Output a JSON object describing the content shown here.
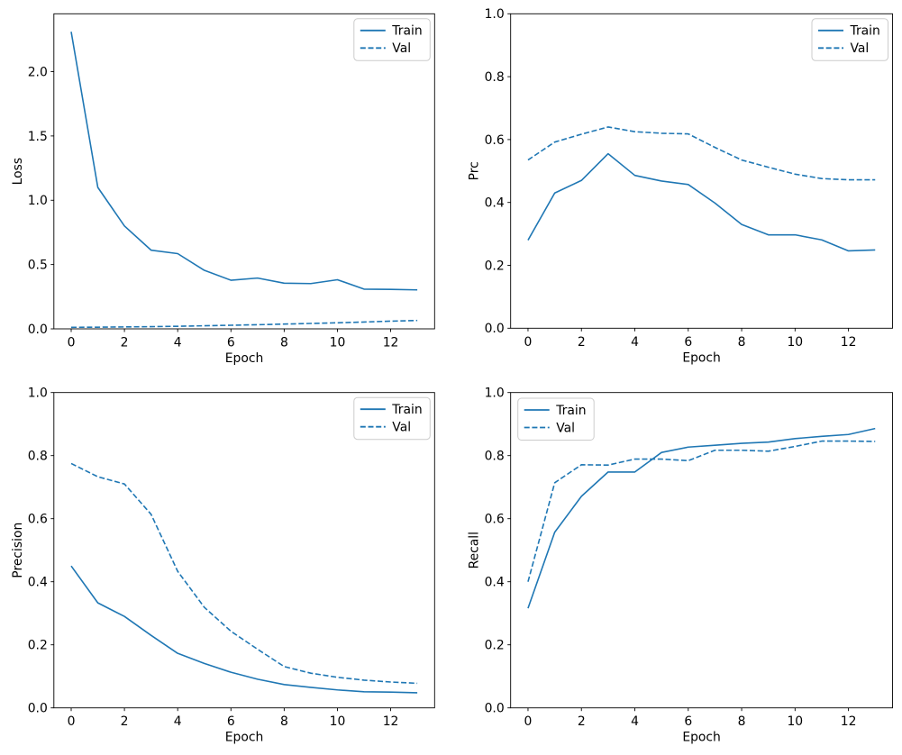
{
  "figure": {
    "background": "#ffffff",
    "accent_color": "#1f77b4",
    "spine_color": "#000000",
    "legend_border_color": "#cccccc"
  },
  "chart_data": [
    {
      "type": "line",
      "title": "",
      "xlabel": "Epoch",
      "ylabel": "Loss",
      "x": [
        0,
        1,
        2,
        3,
        4,
        5,
        6,
        7,
        8,
        9,
        10,
        11,
        12,
        13
      ],
      "series": [
        {
          "name": "Train",
          "line_style": "solid",
          "values": [
            2.31,
            1.1,
            0.8,
            0.612,
            0.585,
            0.455,
            0.378,
            0.395,
            0.355,
            0.352,
            0.382,
            0.309,
            0.307,
            0.303
          ]
        },
        {
          "name": "Val",
          "line_style": "dashed",
          "values": [
            0.012,
            0.013,
            0.015,
            0.017,
            0.02,
            0.024,
            0.028,
            0.032,
            0.037,
            0.042,
            0.047,
            0.053,
            0.06,
            0.065
          ]
        }
      ],
      "xlim": [
        -0.65,
        13.65
      ],
      "ylim": [
        0,
        2.45
      ],
      "xticks": [
        0,
        2,
        4,
        6,
        8,
        10,
        12
      ],
      "yticks": [
        0.0,
        0.5,
        1.0,
        1.5,
        2.0
      ],
      "grid": false,
      "legend": {
        "position": "upper-right",
        "entries": [
          "Train",
          "Val"
        ]
      }
    },
    {
      "type": "line",
      "title": "",
      "xlabel": "Epoch",
      "ylabel": "Prc",
      "x": [
        0,
        1,
        2,
        3,
        4,
        5,
        6,
        7,
        8,
        9,
        10,
        11,
        12,
        13
      ],
      "series": [
        {
          "name": "Train",
          "line_style": "solid",
          "values": [
            0.28,
            0.43,
            0.47,
            0.555,
            0.486,
            0.468,
            0.457,
            0.398,
            0.33,
            0.297,
            0.297,
            0.281,
            0.246,
            0.249
          ]
        },
        {
          "name": "Val",
          "line_style": "dashed",
          "values": [
            0.535,
            0.592,
            0.617,
            0.64,
            0.625,
            0.62,
            0.618,
            0.575,
            0.535,
            0.512,
            0.49,
            0.476,
            0.472,
            0.472
          ]
        }
      ],
      "xlim": [
        -0.65,
        13.65
      ],
      "ylim": [
        0,
        1.0
      ],
      "xticks": [
        0,
        2,
        4,
        6,
        8,
        10,
        12
      ],
      "yticks": [
        0.0,
        0.2,
        0.4,
        0.6,
        0.8,
        1.0
      ],
      "grid": false,
      "legend": {
        "position": "upper-right",
        "entries": [
          "Train",
          "Val"
        ]
      }
    },
    {
      "type": "line",
      "title": "",
      "xlabel": "Epoch",
      "ylabel": "Precision",
      "x": [
        0,
        1,
        2,
        3,
        4,
        5,
        6,
        7,
        8,
        9,
        10,
        11,
        12,
        13
      ],
      "series": [
        {
          "name": "Train",
          "line_style": "solid",
          "values": [
            0.45,
            0.333,
            0.29,
            0.23,
            0.173,
            0.141,
            0.113,
            0.091,
            0.074,
            0.065,
            0.057,
            0.051,
            0.05,
            0.048
          ]
        },
        {
          "name": "Val",
          "line_style": "dashed",
          "values": [
            0.775,
            0.733,
            0.71,
            0.614,
            0.433,
            0.319,
            0.243,
            0.186,
            0.131,
            0.11,
            0.097,
            0.088,
            0.082,
            0.078
          ]
        }
      ],
      "xlim": [
        -0.65,
        13.65
      ],
      "ylim": [
        0,
        1.0
      ],
      "xticks": [
        0,
        2,
        4,
        6,
        8,
        10,
        12
      ],
      "yticks": [
        0.0,
        0.2,
        0.4,
        0.6,
        0.8,
        1.0
      ],
      "grid": false,
      "legend": {
        "position": "upper-right",
        "entries": [
          "Train",
          "Val"
        ]
      }
    },
    {
      "type": "line",
      "title": "",
      "xlabel": "Epoch",
      "ylabel": "Recall",
      "x": [
        0,
        1,
        2,
        3,
        4,
        5,
        6,
        7,
        8,
        9,
        10,
        11,
        12,
        13
      ],
      "series": [
        {
          "name": "Train",
          "line_style": "solid",
          "values": [
            0.316,
            0.557,
            0.671,
            0.748,
            0.748,
            0.81,
            0.827,
            0.833,
            0.839,
            0.843,
            0.854,
            0.861,
            0.867,
            0.886
          ]
        },
        {
          "name": "Val",
          "line_style": "dashed",
          "values": [
            0.4,
            0.714,
            0.771,
            0.77,
            0.789,
            0.789,
            0.784,
            0.817,
            0.817,
            0.814,
            0.829,
            0.846,
            0.846,
            0.845
          ]
        }
      ],
      "xlim": [
        -0.65,
        13.65
      ],
      "ylim": [
        0,
        1.0
      ],
      "xticks": [
        0,
        2,
        4,
        6,
        8,
        10,
        12
      ],
      "yticks": [
        0.0,
        0.2,
        0.4,
        0.6,
        0.8,
        1.0
      ],
      "grid": false,
      "legend": {
        "position": "upper-left",
        "entries": [
          "Train",
          "Val"
        ]
      }
    }
  ]
}
